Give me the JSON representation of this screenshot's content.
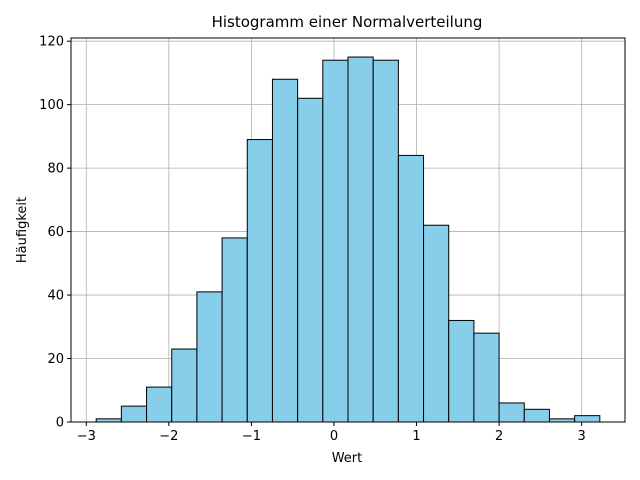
{
  "chart_data": {
    "type": "bar",
    "title": "Histogramm einer Normalverteilung",
    "xlabel": "Wert",
    "ylabel": "Häufigkeit",
    "bin_edges": [
      -2.88,
      -2.575,
      -2.27,
      -1.965,
      -1.66,
      -1.355,
      -1.05,
      -0.745,
      -0.44,
      -0.135,
      0.17,
      0.475,
      0.78,
      1.085,
      1.39,
      1.695,
      2.0,
      2.305,
      2.61,
      2.915,
      3.22
    ],
    "values": [
      1,
      5,
      11,
      23,
      41,
      58,
      89,
      108,
      102,
      114,
      115,
      114,
      84,
      62,
      32,
      28,
      6,
      4,
      1,
      2
    ],
    "xlim": [
      -3.185,
      3.525
    ],
    "ylim": [
      0,
      121
    ],
    "xticks": [
      -3,
      -2,
      -1,
      0,
      1,
      2,
      3
    ],
    "xtick_labels": [
      "−3",
      "−2",
      "−1",
      "0",
      "1",
      "2",
      "3"
    ],
    "yticks": [
      0,
      20,
      40,
      60,
      80,
      100,
      120
    ],
    "ytick_labels": [
      "0",
      "20",
      "40",
      "60",
      "80",
      "100",
      "120"
    ],
    "grid": true,
    "bar_color": "#87ceeb",
    "edge_color": "#000000"
  }
}
